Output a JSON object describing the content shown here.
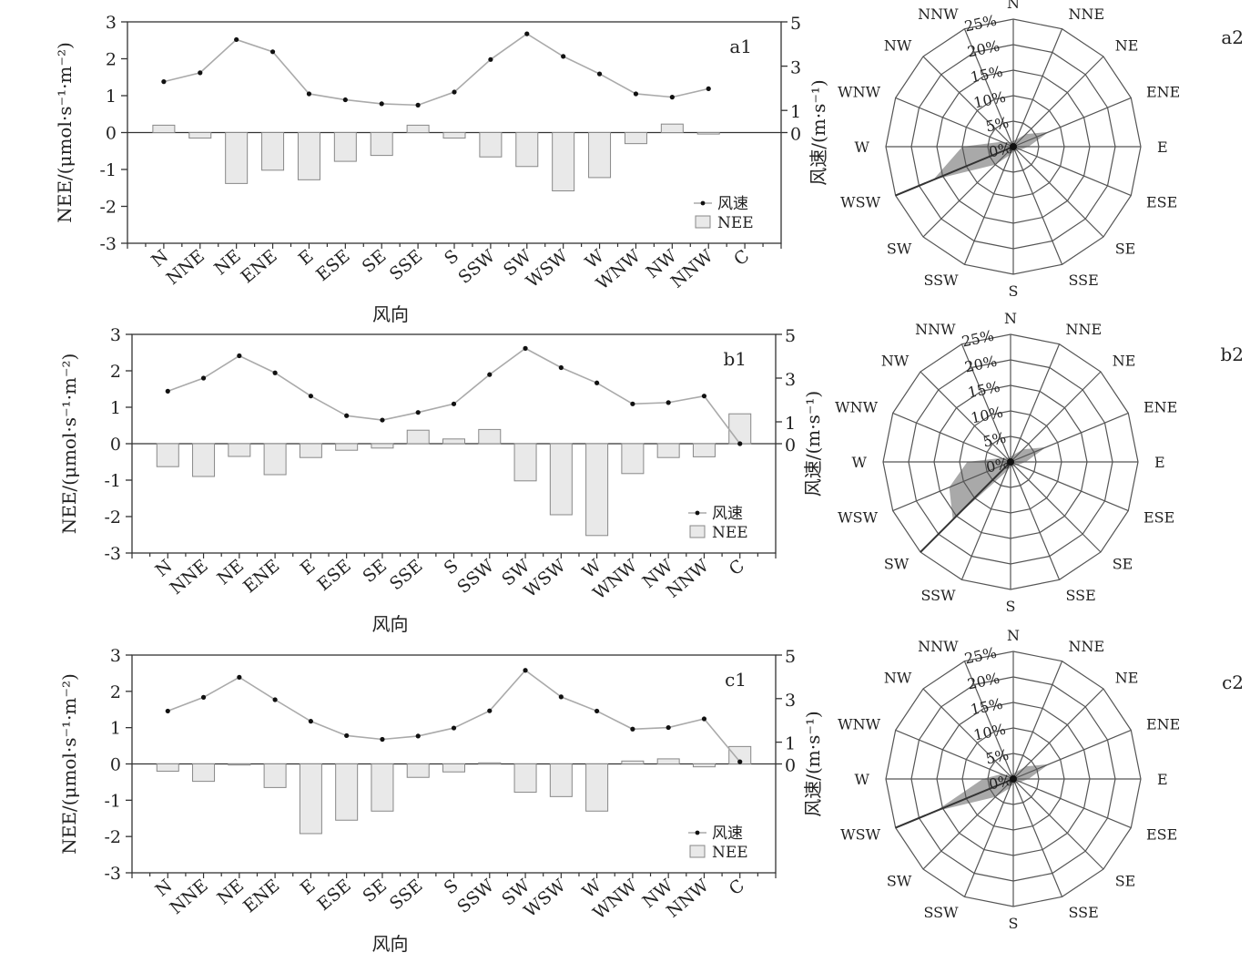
{
  "directions": [
    "N",
    "NNE",
    "NE",
    "ENE",
    "E",
    "ESE",
    "SE",
    "SSE",
    "S",
    "SSW",
    "SW",
    "WSW",
    "W",
    "WNW",
    "NW",
    "NNW",
    "C"
  ],
  "rose_directions": [
    "N",
    "NNE",
    "NE",
    "ENE",
    "E",
    "ESE",
    "SE",
    "SSE",
    "S",
    "SSW",
    "SW",
    "WSW",
    "W",
    "WNW",
    "NW",
    "NNW"
  ],
  "rose_ticks": [
    "0%",
    "5%",
    "10%",
    "15%",
    "20%",
    "25%"
  ],
  "x_axis_label": "风向",
  "y_left_label": "NEE/(μmol·s⁻¹·m⁻²)",
  "y_right_label": "风速/(m·s⁻¹)",
  "legend": {
    "wind": "风速",
    "nee": "NEE"
  },
  "chart_data": [
    {
      "type": "bar",
      "panel": "a1",
      "categories": [
        "N",
        "NNE",
        "NE",
        "ENE",
        "E",
        "ESE",
        "SE",
        "SSE",
        "S",
        "SSW",
        "SW",
        "WSW",
        "W",
        "WNW",
        "NW",
        "NNW",
        "C"
      ],
      "tick_labels": [
        "N",
        "NNE",
        "NE",
        "ENE",
        "E",
        "ESE",
        "SE",
        "SSE",
        "S",
        "SSW",
        "SW",
        "WSW",
        "W",
        "WNW",
        "NW",
        "NNW",
        "C"
      ],
      "series": [
        {
          "name": "NEE",
          "type": "bar",
          "axis": "left",
          "values": [
            0.2,
            -0.15,
            -1.38,
            -1.02,
            -1.28,
            -0.78,
            -0.62,
            0.2,
            -0.15,
            -0.66,
            -0.92,
            -1.58,
            -1.22,
            -0.3,
            0.23,
            -0.04,
            null
          ]
        },
        {
          "name": "风速",
          "type": "line",
          "axis": "right",
          "values": [
            2.3,
            2.7,
            4.2,
            3.65,
            1.75,
            1.48,
            1.3,
            1.24,
            1.83,
            3.3,
            4.46,
            3.44,
            2.65,
            1.75,
            1.6,
            1.98,
            null
          ]
        }
      ],
      "ylim": [
        -3,
        3
      ],
      "yticks": [
        -3,
        -2,
        -1,
        0,
        1,
        2,
        3
      ],
      "y2lim": [
        -5,
        5
      ],
      "y2ticks": [
        0,
        1,
        3,
        5
      ]
    },
    {
      "type": "bar",
      "panel": "b1",
      "categories": [
        "N",
        "NNE",
        "NE",
        "ENE",
        "E",
        "ESE",
        "SE",
        "SSE",
        "S",
        "SSW",
        "SW",
        "WSW",
        "W",
        "WNW",
        "NW",
        "NNW",
        "C"
      ],
      "tick_labels": [
        "N",
        "NNE",
        "NE",
        "ENE",
        "E",
        "ESE",
        "SE",
        "SSE",
        "S",
        "SSW",
        "SW",
        "WSW",
        "W",
        "WNW",
        "NW",
        "NNW",
        "C"
      ],
      "series": [
        {
          "name": "NEE",
          "type": "bar",
          "axis": "left",
          "values": [
            -0.63,
            -0.9,
            -0.35,
            -0.85,
            -0.38,
            -0.18,
            -0.12,
            0.37,
            0.13,
            0.39,
            -1.02,
            -1.95,
            -2.52,
            -0.82,
            -0.38,
            -0.36,
            0.82
          ]
        },
        {
          "name": "风速",
          "type": "line",
          "axis": "right",
          "values": [
            2.4,
            3.0,
            4.02,
            3.24,
            2.18,
            1.28,
            1.08,
            1.43,
            1.82,
            3.16,
            4.36,
            3.48,
            2.78,
            1.82,
            1.88,
            2.18,
            0
          ]
        }
      ],
      "ylim": [
        -3,
        3
      ],
      "yticks": [
        -3,
        -2,
        -1,
        0,
        1,
        2,
        3
      ],
      "y2lim": [
        -5,
        5
      ],
      "y2ticks": [
        0,
        1,
        3,
        5
      ]
    },
    {
      "type": "bar",
      "panel": "c1",
      "categories": [
        "N",
        "NNE",
        "NE",
        "ENE",
        "E",
        "ESE",
        "SE",
        "SSE",
        "S",
        "SSW",
        "SW",
        "WSW",
        "W",
        "WNW",
        "NW",
        "NNW",
        "C"
      ],
      "tick_labels": [
        "N",
        "NNE",
        "NE",
        "ENE",
        "E",
        "ESE",
        "SE",
        "SSE",
        "S",
        "SSW",
        "SW",
        "WSW",
        "W",
        "WNW",
        "NW",
        "NNW",
        "C"
      ],
      "series": [
        {
          "name": "NEE",
          "type": "bar",
          "axis": "left",
          "values": [
            -0.2,
            -0.48,
            -0.03,
            -0.65,
            -1.92,
            -1.55,
            -1.3,
            -0.37,
            -0.22,
            0.03,
            -0.78,
            -0.9,
            -1.3,
            0.08,
            0.14,
            -0.08,
            0.48
          ]
        },
        {
          "name": "风速",
          "type": "line",
          "axis": "right",
          "values": [
            2.43,
            3.06,
            3.98,
            2.95,
            1.96,
            1.3,
            1.13,
            1.28,
            1.65,
            2.44,
            4.3,
            3.08,
            2.43,
            1.6,
            1.67,
            2.07,
            0.1
          ]
        }
      ],
      "ylim": [
        -3,
        3
      ],
      "yticks": [
        -3,
        -2,
        -1,
        0,
        1,
        2,
        3
      ],
      "y2lim": [
        -5,
        5
      ],
      "y2ticks": [
        0,
        1,
        3,
        5
      ]
    },
    {
      "type": "radar",
      "panel": "a2",
      "categories": [
        "N",
        "NNE",
        "NE",
        "ENE",
        "E",
        "ESE",
        "SE",
        "SSE",
        "S",
        "SSW",
        "SW",
        "WSW",
        "W",
        "WNW",
        "NW",
        "NNW"
      ],
      "values": [
        1.2,
        1.5,
        3.5,
        7.5,
        3,
        1.5,
        1,
        1,
        1,
        1.8,
        5,
        17,
        10,
        2.5,
        1.2,
        1
      ],
      "rlim": [
        0,
        25
      ]
    },
    {
      "type": "radar",
      "panel": "b2",
      "categories": [
        "N",
        "NNE",
        "NE",
        "ENE",
        "E",
        "ESE",
        "SE",
        "SSE",
        "S",
        "SSW",
        "SW",
        "WSW",
        "W",
        "WNW",
        "NW",
        "NNW"
      ],
      "values": [
        1,
        1.5,
        3.5,
        7.5,
        3,
        1.5,
        1,
        1,
        1,
        2,
        16,
        13,
        8.5,
        2,
        1,
        1
      ],
      "rlim": [
        0,
        25
      ]
    },
    {
      "type": "radar",
      "panel": "c2",
      "categories": [
        "N",
        "NNE",
        "NE",
        "ENE",
        "E",
        "ESE",
        "SE",
        "SSE",
        "S",
        "SSW",
        "SW",
        "WSW",
        "W",
        "WNW",
        "NW",
        "NNW"
      ],
      "values": [
        1,
        1.5,
        3.5,
        7.5,
        3,
        1.5,
        1,
        1,
        1,
        2,
        5,
        16.5,
        6,
        2.5,
        1,
        1
      ],
      "rlim": [
        0,
        25
      ]
    }
  ]
}
